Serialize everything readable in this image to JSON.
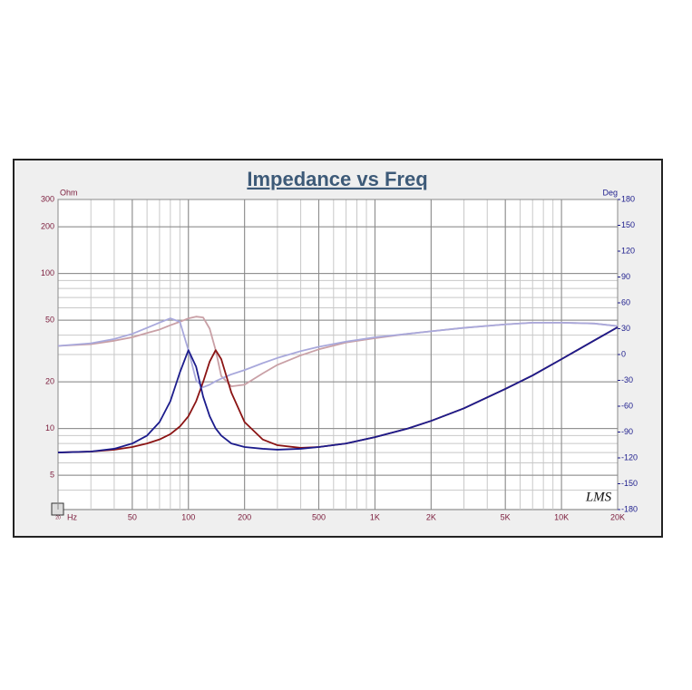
{
  "chart_data": {
    "type": "line",
    "title": "Impedance vs Freq",
    "xlabel": "Hz",
    "ylabel": "Ohm",
    "y2label": "Deg",
    "logo": "LMS",
    "xscale": "log",
    "yscale": "log",
    "grid": true,
    "minor_grid": true,
    "xlim": [
      20,
      20000
    ],
    "xticks": [
      20,
      50,
      100,
      200,
      500,
      {
        "value": 1000,
        "label": "1K"
      },
      {
        "value": 2000,
        "label": "2K"
      },
      {
        "value": 5000,
        "label": "5K"
      },
      {
        "value": 10000,
        "label": "10K"
      },
      {
        "value": 20000,
        "label": "20K"
      }
    ],
    "ylim": [
      3,
      300
    ],
    "yticks": [
      5,
      10,
      20,
      50,
      100,
      200,
      300
    ],
    "y2lim": [
      -180,
      180
    ],
    "y2ticks": [
      -180,
      -150,
      -120,
      -90,
      -60,
      -30,
      0,
      30,
      60,
      90,
      120,
      150,
      180
    ],
    "x": [
      20,
      30,
      40,
      50,
      60,
      70,
      80,
      90,
      100,
      110,
      120,
      130,
      140,
      150,
      170,
      200,
      250,
      300,
      400,
      500,
      700,
      1000,
      1500,
      2000,
      3000,
      5000,
      7000,
      10000,
      15000,
      20000
    ],
    "series": [
      {
        "color": "#c9a0a6",
        "axis": "y2",
        "values": [
          10,
          12,
          16,
          20,
          25,
          29,
          34,
          38,
          42,
          44,
          43,
          30,
          5,
          -25,
          -37,
          -35,
          -22,
          -12,
          -1,
          6,
          14,
          19,
          24,
          27,
          31,
          35,
          37,
          37,
          36,
          33
        ]
      },
      {
        "color": "#a9a9dc",
        "axis": "y2",
        "values": [
          10,
          13,
          18,
          24,
          31,
          37,
          42,
          38,
          5,
          -30,
          -38,
          -35,
          -31,
          -28,
          -23,
          -18,
          -10,
          -4,
          4,
          9,
          15,
          20,
          24,
          27,
          31,
          35,
          37,
          37,
          36,
          33
        ]
      },
      {
        "color": "#8b1414",
        "values": [
          7.0,
          7.1,
          7.3,
          7.6,
          8.0,
          8.5,
          9.2,
          10.3,
          12,
          15,
          20,
          27,
          32,
          28,
          17,
          11,
          8.5,
          7.8,
          7.5,
          7.6,
          8.0,
          8.8,
          10,
          11.2,
          13.5,
          18,
          22,
          28,
          37,
          45
        ]
      },
      {
        "color": "#1c1c8c",
        "values": [
          7.0,
          7.1,
          7.4,
          8.0,
          9.0,
          11,
          15,
          23,
          32,
          25,
          16,
          12,
          10,
          9.0,
          8.0,
          7.6,
          7.4,
          7.3,
          7.4,
          7.6,
          8.0,
          8.8,
          10,
          11.2,
          13.5,
          18,
          22,
          28,
          37,
          45
        ]
      }
    ]
  }
}
